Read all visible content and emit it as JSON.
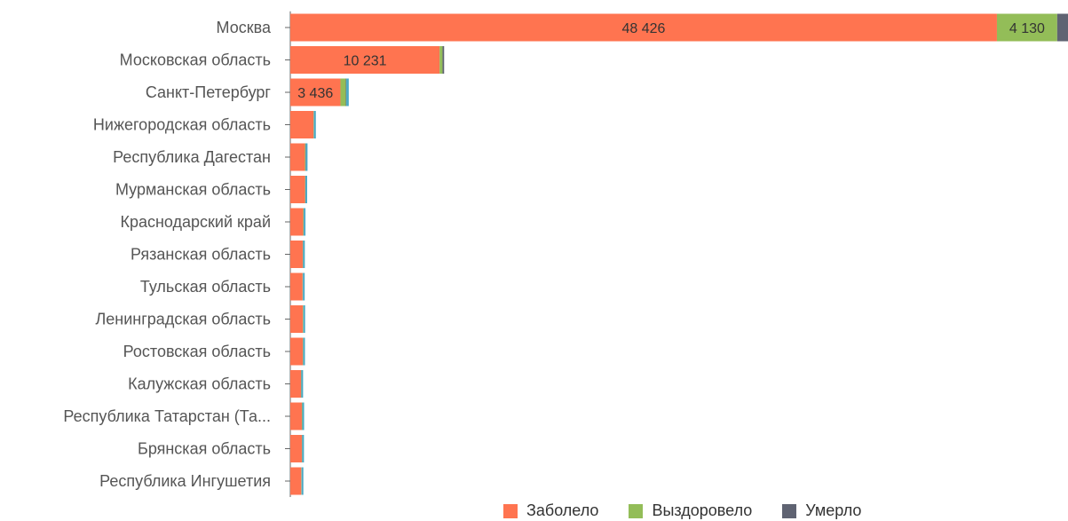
{
  "chart_data": {
    "type": "bar",
    "orientation": "horizontal",
    "stacked": true,
    "categories": [
      "Москва",
      "Московская область",
      "Санкт-Петербург",
      "Нижегородская область",
      "Республика Дагестан",
      "Мурманская область",
      "Краснодарский край",
      "Рязанская область",
      "Тульская область",
      "Ленинградская область",
      "Ростовская область",
      "Калужская область",
      "Республика Татарстан (Та...",
      "Брянская область",
      "Республика Ингушетия"
    ],
    "series": [
      {
        "name": "Заболело",
        "color": "#ff7450",
        "values": [
          48426,
          10231,
          3436,
          1590,
          1000,
          1010,
          880,
          850,
          840,
          860,
          860,
          730,
          790,
          790,
          750
        ],
        "labels": [
          "48 426",
          "10 231",
          "3 436",
          "",
          "",
          "",
          "",
          "",
          "",
          "",
          "",
          "",
          "",
          "",
          ""
        ]
      },
      {
        "name": "Выздоровело",
        "color": "#93bd58",
        "values": [
          4130,
          200,
          370,
          20,
          40,
          20,
          30,
          20,
          20,
          30,
          20,
          20,
          30,
          20,
          20
        ],
        "labels": [
          "4 130",
          "",
          "",
          "",
          "",
          "",
          "",
          "",
          "",
          "",
          "",
          "",
          "",
          "",
          ""
        ]
      },
      {
        "name": "Умерло",
        "color": "#5f6372",
        "values": [
          740,
          110,
          30,
          10,
          20,
          5,
          10,
          5,
          5,
          5,
          5,
          5,
          5,
          5,
          5
        ],
        "labels": [
          "",
          "",
          "",
          "",
          "",
          "",
          "",
          "",
          "",
          "",
          "",
          "",
          "",
          "",
          ""
        ]
      },
      {
        "color": "#4aa8c4",
        "values": [
          0,
          0,
          170,
          130,
          120,
          120,
          120,
          120,
          120,
          120,
          120,
          120,
          120,
          120,
          120
        ],
        "labels": [
          "",
          "",
          "",
          "",
          "",
          "",
          "",
          "",
          "",
          "",
          "",
          "",
          "",
          "",
          ""
        ]
      }
    ],
    "xlim": [
      0,
      53296
    ],
    "legend": "bottom",
    "grid": false
  },
  "legend": [
    {
      "label": "Заболело",
      "color": "#ff7450"
    },
    {
      "label": "Выздоровело",
      "color": "#93bd58"
    },
    {
      "label": "Умерло",
      "color": "#5f6372"
    }
  ]
}
